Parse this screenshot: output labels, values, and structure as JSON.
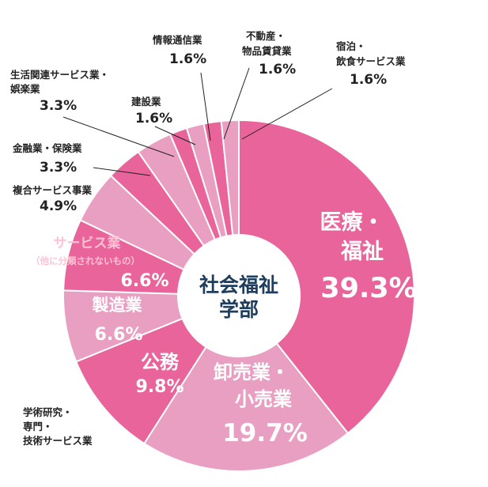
{
  "chart_data": {
    "type": "pie",
    "center_label": [
      "社会福祉",
      "学部"
    ],
    "colors": {
      "dark": "#e8649a",
      "light": "#e99fc2",
      "text_dark": "#1f3d5c",
      "text_pink": "#ffc2d4"
    },
    "slices": [
      {
        "label": [
          "医療・",
          "福祉"
        ],
        "value": 39.3,
        "value_label": "39.3%",
        "shade": "dark"
      },
      {
        "label": [
          "卸売業・",
          "小売業"
        ],
        "value": 19.7,
        "value_label": "19.7%",
        "shade": "light"
      },
      {
        "label": [
          "学術研究・",
          "専門・",
          "技術サービス業"
        ],
        "value": 0,
        "value_label": "",
        "shade": "light"
      },
      {
        "label": [
          "公務"
        ],
        "value": 9.8,
        "value_label": "9.8%",
        "shade": "dark"
      },
      {
        "label": [
          "製造業"
        ],
        "value": 6.6,
        "value_label": "6.6%",
        "shade": "light"
      },
      {
        "label": [
          "サービス業",
          "（他に分類されないもの）"
        ],
        "value": 6.6,
        "value_label": "6.6%",
        "shade": "dark"
      },
      {
        "label": [
          "複合サービス事業"
        ],
        "value": 4.9,
        "value_label": "4.9%",
        "shade": "light"
      },
      {
        "label": [
          "金融業・保険業"
        ],
        "value": 3.3,
        "value_label": "3.3%",
        "shade": "dark"
      },
      {
        "label": [
          "生活関連サービス業・",
          "娯楽業"
        ],
        "value": 3.3,
        "value_label": "3.3%",
        "shade": "light"
      },
      {
        "label": [
          "建設業"
        ],
        "value": 1.6,
        "value_label": "1.6%",
        "shade": "dark"
      },
      {
        "label": [
          "情報通信業"
        ],
        "value": 1.6,
        "value_label": "1.6%",
        "shade": "light"
      },
      {
        "label": [
          "不動産・",
          "物品賃貸業"
        ],
        "value": 1.6,
        "value_label": "1.6%",
        "shade": "dark"
      },
      {
        "label": [
          "宿泊・",
          "飲食サービス業"
        ],
        "value": 1.6,
        "value_label": "1.6%",
        "shade": "light"
      }
    ]
  }
}
